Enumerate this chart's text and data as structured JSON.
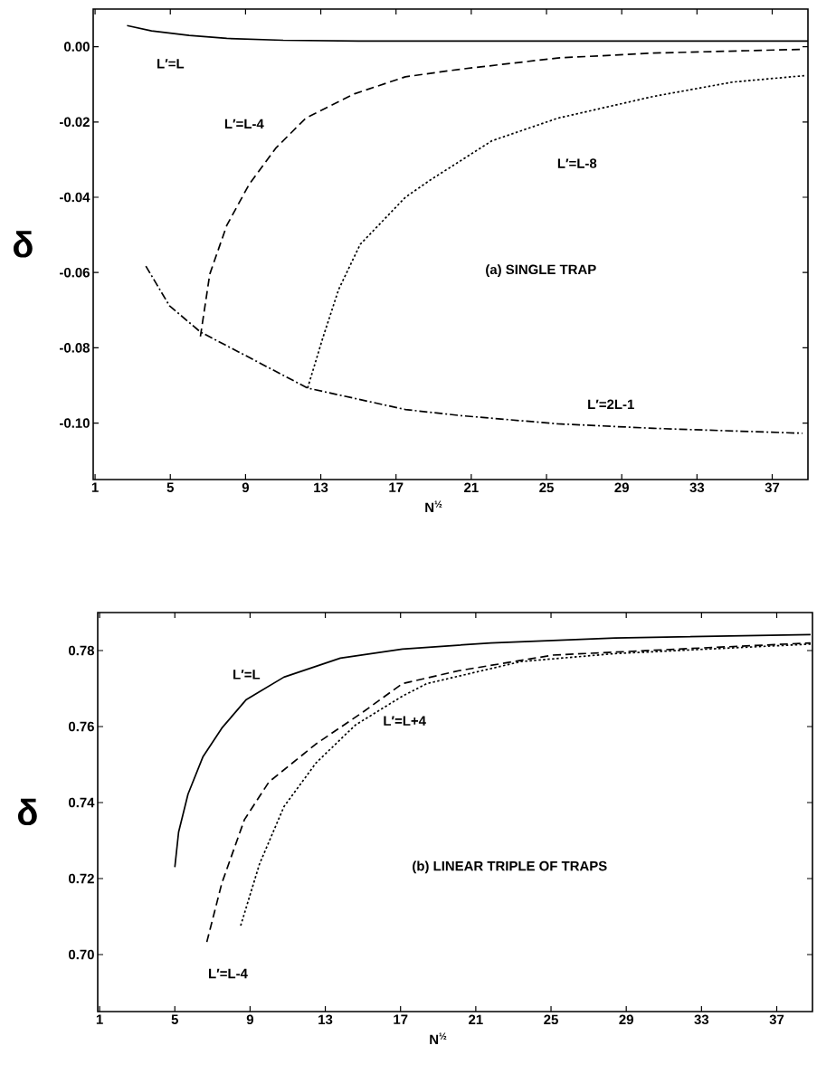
{
  "chart_data": [
    {
      "type": "line",
      "title": "(a) SINGLE TRAP",
      "xlabel": "N$^{½}$",
      "ylabel": "δ",
      "xlim": [
        0.9,
        38.9
      ],
      "ylim": [
        -0.115,
        0.01
      ],
      "xticks": [
        1,
        5,
        9,
        13,
        17,
        21,
        25,
        29,
        33,
        37
      ],
      "yticks": [
        {
          "value": 0,
          "label": "0.00"
        },
        {
          "value": -0.02,
          "label": "-0.02"
        },
        {
          "value": -0.04,
          "label": "-0.04"
        },
        {
          "value": -0.06,
          "label": "-0.06"
        },
        {
          "value": -0.08,
          "label": "-0.08"
        },
        {
          "value": -0.1,
          "label": "-0.10"
        }
      ],
      "series": [
        {
          "name": "L′=L",
          "color": "#000000",
          "line_style": "solid",
          "x": [
            2.7,
            4,
            6,
            8,
            11,
            15,
            38.9
          ],
          "values": [
            0.0056,
            0.0042,
            0.003,
            0.0022,
            0.0017,
            0.0015,
            0.0015
          ]
        },
        {
          "name": "L′=L-4",
          "color": "#000000",
          "line_style": "dashed",
          "x": [
            6.6,
            7.1,
            8.0,
            9.2,
            10.6,
            12.2,
            14.8,
            17.5,
            20.4,
            25.6,
            30.7,
            38.6
          ],
          "values": [
            -0.077,
            -0.0604,
            -0.0475,
            -0.0365,
            -0.027,
            -0.019,
            -0.0125,
            -0.008,
            -0.006,
            -0.003,
            -0.0017,
            -0.0007
          ]
        },
        {
          "name": "L′=L-8",
          "color": "#000000",
          "line_style": "dotted",
          "x": [
            12.3,
            13.1,
            13.95,
            15.1,
            17.5,
            18.8,
            22.1,
            25.6,
            30.7,
            34.9,
            38.7
          ],
          "values": [
            -0.0907,
            -0.0775,
            -0.0645,
            -0.0525,
            -0.04,
            -0.0355,
            -0.025,
            -0.019,
            -0.0132,
            -0.0094,
            -0.0077
          ]
        },
        {
          "name": "L′=2L-1",
          "color": "#000000",
          "line_style": "dashdot",
          "x": [
            3.7,
            4.95,
            6.6,
            8.9,
            12.3,
            17.5,
            20.4,
            25.6,
            30.7,
            38.6
          ],
          "values": [
            -0.0583,
            -0.0688,
            -0.0758,
            -0.0818,
            -0.0907,
            -0.0964,
            -0.098,
            -0.1002,
            -0.1014,
            -0.1027
          ]
        }
      ]
    },
    {
      "type": "line",
      "title": "(b) LINEAR TRIPLE OF TRAPS",
      "xlabel": "N$^{½}$",
      "ylabel": "δ",
      "xlim": [
        0.9,
        38.9
      ],
      "ylim": [
        0.685,
        0.79
      ],
      "xticks": [
        1,
        5,
        9,
        13,
        17,
        21,
        25,
        29,
        33,
        37
      ],
      "yticks": [
        {
          "value": 0.7,
          "label": "0.70"
        },
        {
          "value": 0.72,
          "label": "0.72"
        },
        {
          "value": 0.74,
          "label": "0.74"
        },
        {
          "value": 0.76,
          "label": "0.76"
        },
        {
          "value": 0.78,
          "label": "0.78"
        }
      ],
      "series": [
        {
          "name": "L′=L",
          "color": "#000000",
          "line_style": "solid",
          "x": [
            5,
            5.2,
            5.7,
            6.5,
            7.5,
            8.8,
            10.8,
            13.8,
            17.1,
            21.8,
            28.4,
            38.8
          ],
          "values": [
            0.723,
            0.7322,
            0.7422,
            0.7521,
            0.7596,
            0.7671,
            0.773,
            0.778,
            0.7804,
            0.782,
            0.7833,
            0.7842
          ]
        },
        {
          "name": "L′=L-4",
          "color": "#000000",
          "line_style": "dashed",
          "x": [
            6.7,
            7.5,
            8.7,
            10.0,
            12.5,
            15.0,
            17.1,
            20.1,
            25.1,
            31.8,
            38.8
          ],
          "values": [
            0.7033,
            0.7188,
            0.7355,
            0.7454,
            0.7554,
            0.7638,
            0.7713,
            0.7747,
            0.7788,
            0.7804,
            0.782
          ]
        },
        {
          "name": "L′=L+4",
          "color": "#000000",
          "line_style": "dotted",
          "x": [
            8.5,
            9.5,
            10.8,
            12.5,
            14.6,
            17.1,
            18.4,
            23.4,
            28.4,
            38.8
          ],
          "values": [
            0.7076,
            0.7238,
            0.7389,
            0.7504,
            0.7604,
            0.768,
            0.7713,
            0.7771,
            0.7792,
            0.7817
          ]
        }
      ]
    }
  ]
}
